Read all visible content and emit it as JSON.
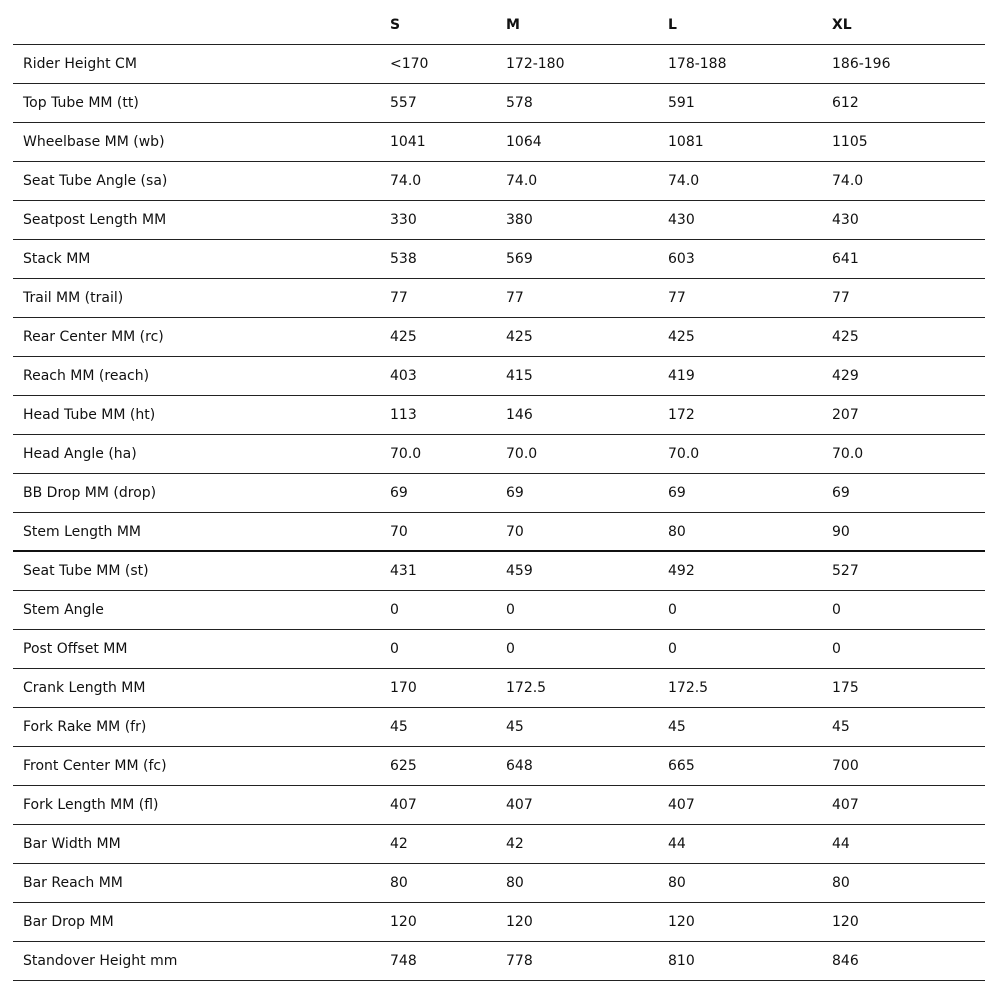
{
  "table": {
    "columns": [
      "S",
      "M",
      "L",
      "XL"
    ],
    "rows": [
      [
        "Rider Height CM",
        "<170",
        "172-180",
        "178-188",
        "186-196"
      ],
      [
        "Top Tube MM (tt)",
        "557",
        "578",
        "591",
        "612"
      ],
      [
        "Wheelbase MM (wb)",
        "1041",
        "1064",
        "1081",
        "1105"
      ],
      [
        "Seat Tube Angle (sa)",
        "74.0",
        "74.0",
        "74.0",
        "74.0"
      ],
      [
        "Seatpost Length MM",
        "330",
        "380",
        "430",
        "430"
      ],
      [
        "Stack MM",
        "538",
        "569",
        "603",
        "641"
      ],
      [
        "Trail MM (trail)",
        "77",
        "77",
        "77",
        "77"
      ],
      [
        "Rear Center MM (rc)",
        "425",
        "425",
        "425",
        "425"
      ],
      [
        "Reach MM (reach)",
        "403",
        "415",
        "419",
        "429"
      ],
      [
        "Head Tube MM (ht)",
        "113",
        "146",
        "172",
        "207"
      ],
      [
        "Head Angle (ha)",
        "70.0",
        "70.0",
        "70.0",
        "70.0"
      ],
      [
        "BB Drop MM (drop)",
        "69",
        "69",
        "69",
        "69"
      ],
      [
        "Stem Length MM",
        "70",
        "70",
        "80",
        "90"
      ],
      [
        "Seat Tube MM (st)",
        "431",
        "459",
        "492",
        "527"
      ],
      [
        "Stem Angle",
        "0",
        "0",
        "0",
        "0"
      ],
      [
        "Post Offset MM",
        "0",
        "0",
        "0",
        "0"
      ],
      [
        "Crank Length MM",
        "170",
        "172.5",
        "172.5",
        "175"
      ],
      [
        "Fork Rake MM (fr)",
        "45",
        "45",
        "45",
        "45"
      ],
      [
        "Front Center MM (fc)",
        "625",
        "648",
        "665",
        "700"
      ],
      [
        "Fork Length MM (fl)",
        "407",
        "407",
        "407",
        "407"
      ],
      [
        "Bar Width MM",
        "42",
        "42",
        "44",
        "44"
      ],
      [
        "Bar Reach MM",
        "80",
        "80",
        "80",
        "80"
      ],
      [
        "Bar Drop MM",
        "120",
        "120",
        "120",
        "120"
      ],
      [
        "Standover Height mm",
        "748",
        "778",
        "810",
        "846"
      ]
    ]
  }
}
